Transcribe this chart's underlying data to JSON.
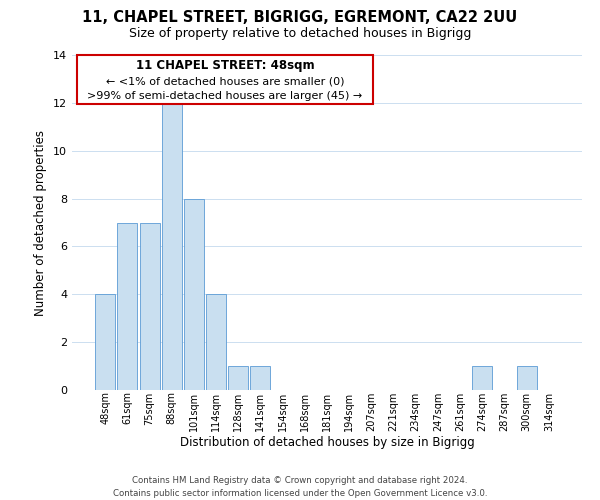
{
  "title_line1": "11, CHAPEL STREET, BIGRIGG, EGREMONT, CA22 2UU",
  "title_line2": "Size of property relative to detached houses in Bigrigg",
  "xlabel": "Distribution of detached houses by size in Bigrigg",
  "ylabel": "Number of detached properties",
  "bar_labels": [
    "48sqm",
    "61sqm",
    "75sqm",
    "88sqm",
    "101sqm",
    "114sqm",
    "128sqm",
    "141sqm",
    "154sqm",
    "168sqm",
    "181sqm",
    "194sqm",
    "207sqm",
    "221sqm",
    "234sqm",
    "247sqm",
    "261sqm",
    "274sqm",
    "287sqm",
    "300sqm",
    "314sqm"
  ],
  "bar_values": [
    4,
    7,
    7,
    12,
    8,
    4,
    1,
    1,
    0,
    0,
    0,
    0,
    0,
    0,
    0,
    0,
    0,
    1,
    0,
    1,
    0
  ],
  "bar_color": "#c9dff0",
  "bar_edge_color": "#5b9bd5",
  "ylim": [
    0,
    14
  ],
  "yticks": [
    0,
    2,
    4,
    6,
    8,
    10,
    12,
    14
  ],
  "annotation_title": "11 CHAPEL STREET: 48sqm",
  "annotation_line1": "← <1% of detached houses are smaller (0)",
  "annotation_line2": ">99% of semi-detached houses are larger (45) →",
  "annotation_box_color": "#ffffff",
  "annotation_box_edge_color": "#cc0000",
  "footer_line1": "Contains HM Land Registry data © Crown copyright and database right 2024.",
  "footer_line2": "Contains public sector information licensed under the Open Government Licence v3.0.",
  "background_color": "#ffffff",
  "grid_color": "#ccdff0"
}
